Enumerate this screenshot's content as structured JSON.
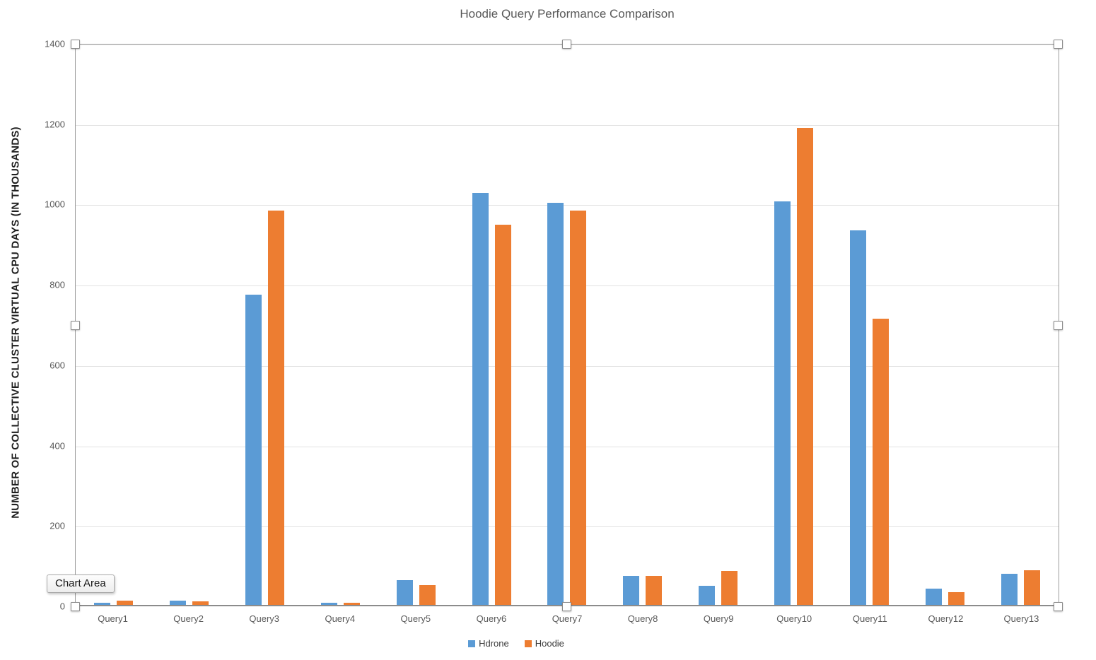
{
  "title": "Hoodie Query Performance Comparison",
  "tooltip_label": "Chart Area",
  "chart_data": {
    "type": "bar",
    "title": "Hoodie Query Performance Comparison",
    "xlabel": "",
    "ylabel": "NUMBER OF COLLECTIVE CLUSTER VIRTUAL CPU DAYS (IN THOUSANDS)",
    "ylim": [
      0,
      1400
    ],
    "yticks": [
      0,
      200,
      400,
      600,
      800,
      1000,
      1200,
      1400
    ],
    "grid": true,
    "legend_position": "bottom",
    "categories": [
      "Query1",
      "Query2",
      "Query3",
      "Query4",
      "Query5",
      "Query6",
      "Query7",
      "Query8",
      "Query9",
      "Query10",
      "Query11",
      "Query12",
      "Query13"
    ],
    "series": [
      {
        "name": "Hdrone",
        "color": "#5B9BD5",
        "values": [
          5,
          10,
          775,
          5,
          62,
          1030,
          1005,
          72,
          48,
          1008,
          935,
          40,
          78
        ]
      },
      {
        "name": "Hoodie",
        "color": "#ED7D31",
        "values": [
          10,
          8,
          985,
          5,
          50,
          950,
          985,
          73,
          85,
          1192,
          715,
          32,
          86
        ]
      }
    ]
  },
  "selection": {
    "target": "plot-area",
    "handle_count": 8
  }
}
